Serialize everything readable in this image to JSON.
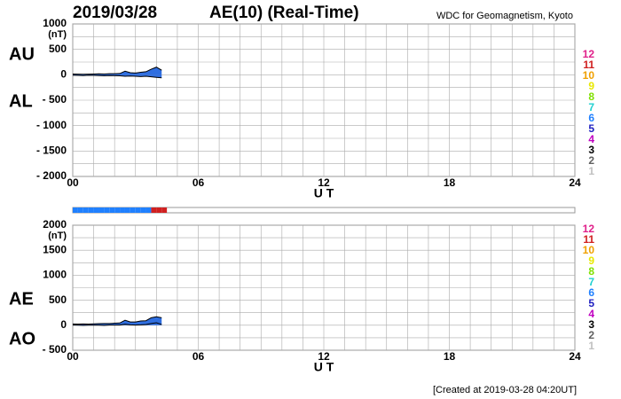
{
  "header": {
    "date": "2019/03/28",
    "title": "AE(10) (Real-Time)",
    "source": "WDC for Geomagnetism, Kyoto"
  },
  "footer": {
    "created": "[Created at 2019-03-28 04:20UT]"
  },
  "station_coverage": {
    "x": [
      0,
      0.25,
      0.5,
      0.75,
      1,
      1.25,
      1.5,
      1.75,
      2,
      2.25,
      2.5,
      2.75,
      3,
      3.25,
      3.5,
      3.75,
      4,
      4.25
    ],
    "counts": [
      6,
      6,
      6,
      6,
      6,
      6,
      6,
      6,
      6,
      6,
      6,
      6,
      6,
      6,
      6,
      11,
      11,
      11
    ]
  },
  "chart_data": [
    {
      "type": "area",
      "unit": "(nT)",
      "xlabel": "U T",
      "xlim": [
        0,
        24
      ],
      "xticks": [
        {
          "value": 0,
          "label": "00"
        },
        {
          "value": 6,
          "label": "06"
        },
        12,
        18,
        24
      ],
      "ylim": [
        -2000,
        1000
      ],
      "yticks": [
        1000,
        500,
        0,
        {
          "value": -500,
          "label": "- 500"
        },
        {
          "value": -1000,
          "label": "- 1000"
        },
        {
          "value": -1500,
          "label": "- 1500"
        },
        {
          "value": -2000,
          "label": "- 2000"
        }
      ],
      "grid": true,
      "x": [
        0,
        0.25,
        0.5,
        0.75,
        1,
        1.25,
        1.5,
        1.75,
        2,
        2.25,
        2.5,
        2.75,
        3,
        3.25,
        3.5,
        3.75,
        4,
        4.25
      ],
      "series": [
        {
          "name": "AU",
          "color": "#000000",
          "fill": "#2f6ee0",
          "values": [
            15,
            12,
            10,
            12,
            15,
            18,
            15,
            20,
            22,
            25,
            70,
            40,
            35,
            50,
            60,
            110,
            150,
            90
          ]
        },
        {
          "name": "AL",
          "color": "#000000",
          "fill": "#2f6ee0",
          "values": [
            -10,
            -12,
            -15,
            -10,
            -12,
            -15,
            -20,
            -15,
            -18,
            -20,
            -30,
            -25,
            -30,
            -35,
            -30,
            -40,
            -50,
            -60
          ]
        }
      ],
      "station_legend": {
        "labels": [
          12,
          11,
          10,
          9,
          8,
          7,
          6,
          5,
          4,
          3,
          2,
          1
        ],
        "colors": [
          "#e0208a",
          "#d02020",
          "#f0a000",
          "#e8e800",
          "#80e000",
          "#20d0d0",
          "#2080ff",
          "#2020c0",
          "#c000c0",
          "#000000",
          "#606060",
          "#c0c0c0"
        ]
      }
    },
    {
      "type": "area",
      "unit": "(nT)",
      "xlabel": "U T",
      "xlim": [
        0,
        24
      ],
      "xticks": [
        {
          "value": 0,
          "label": "00"
        },
        {
          "value": 6,
          "label": "06"
        },
        12,
        18,
        24
      ],
      "ylim": [
        -500,
        2000
      ],
      "yticks": [
        2000,
        1500,
        1000,
        500,
        0,
        {
          "value": -500,
          "label": "- 500"
        }
      ],
      "grid": true,
      "x": [
        0,
        0.25,
        0.5,
        0.75,
        1,
        1.25,
        1.5,
        1.75,
        2,
        2.25,
        2.5,
        2.75,
        3,
        3.25,
        3.5,
        3.75,
        4,
        4.25
      ],
      "series": [
        {
          "name": "AE",
          "color": "#000000",
          "fill": "#2f6ee0",
          "values": [
            25,
            24,
            25,
            22,
            27,
            33,
            35,
            35,
            40,
            45,
            100,
            65,
            65,
            85,
            90,
            150,
            170,
            150
          ]
        },
        {
          "name": "AO",
          "color": "#000000",
          "fill": null,
          "values": [
            2.5,
            0,
            -2.5,
            1,
            1.5,
            1.5,
            -2.5,
            2.5,
            2,
            2.5,
            20,
            7.5,
            2.5,
            7.5,
            15,
            35,
            50,
            15
          ]
        }
      ],
      "station_legend": {
        "labels": [
          12,
          11,
          10,
          9,
          8,
          7,
          6,
          5,
          4,
          3,
          2,
          1
        ],
        "colors": [
          "#e0208a",
          "#d02020",
          "#f0a000",
          "#e8e800",
          "#80e000",
          "#20d0d0",
          "#2080ff",
          "#2020c0",
          "#c000c0",
          "#000000",
          "#606060",
          "#c0c0c0"
        ]
      }
    }
  ]
}
